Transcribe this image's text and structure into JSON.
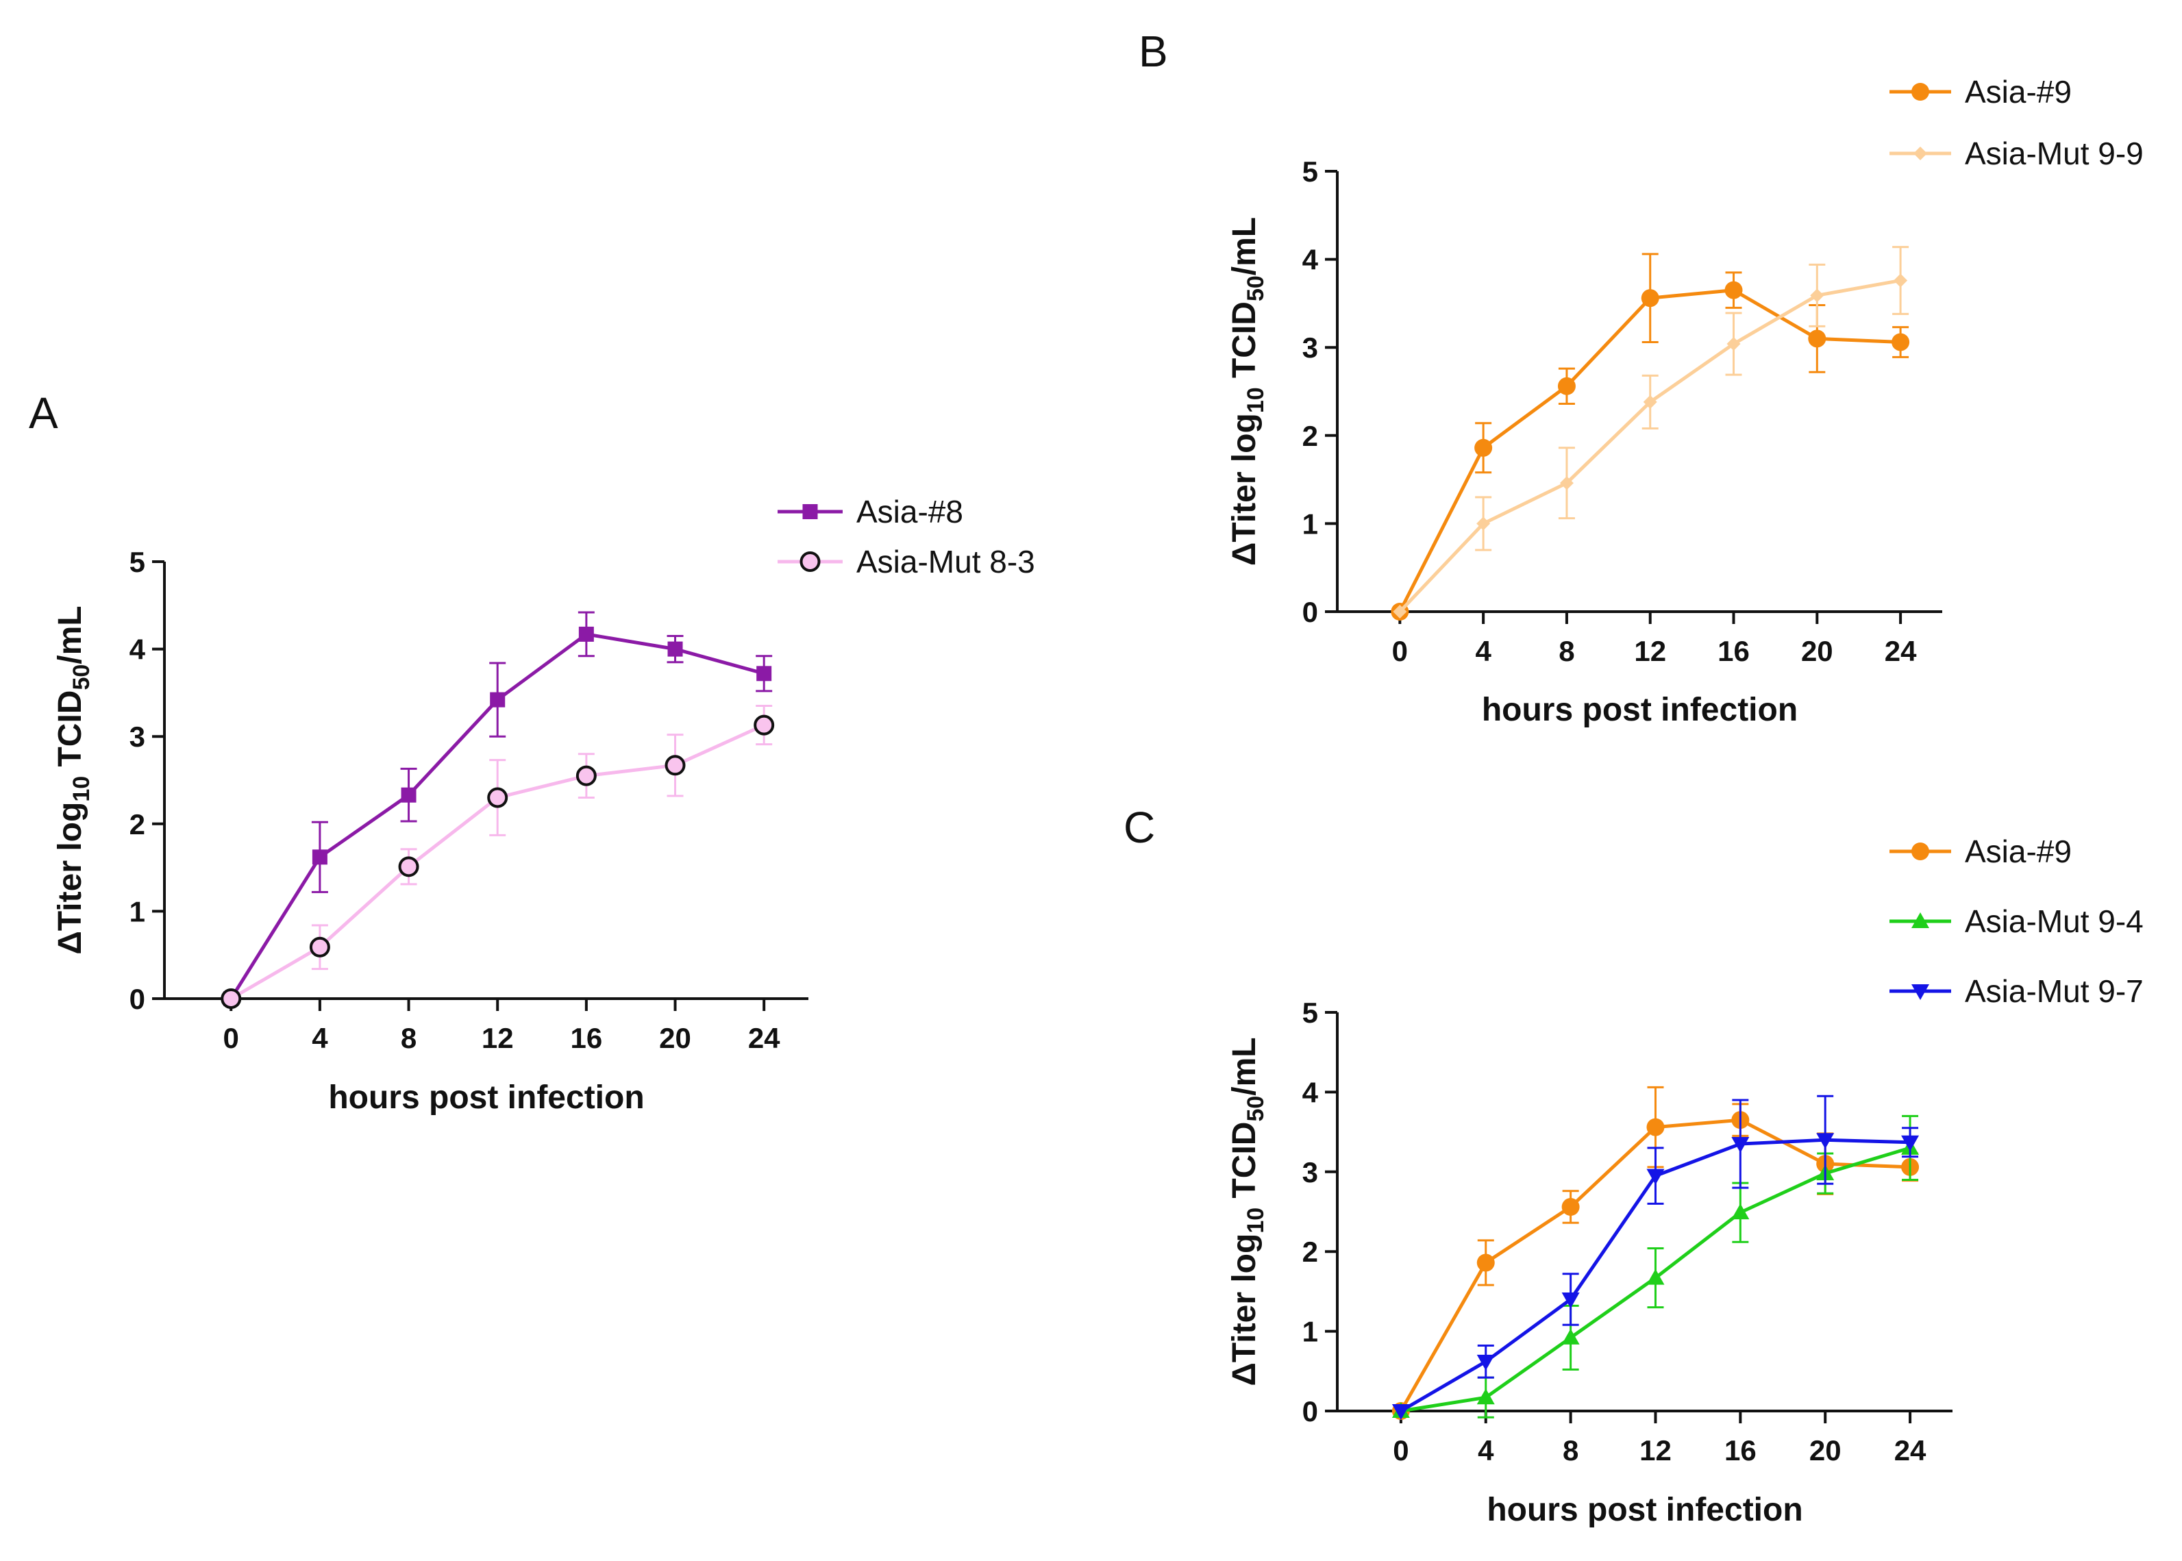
{
  "colors": {
    "purple": "#8b1aa6",
    "pink": "#f7b8ec",
    "pink_marker": "#f9c4ee",
    "orange": "#f58a0f",
    "light_orange": "#fccf99",
    "green": "#1fcf1a",
    "blue": "#1414e6",
    "axis": "#111111"
  },
  "chart_data": [
    {
      "panel": "A",
      "type": "line",
      "title": "",
      "xlabel": "hours post infection",
      "ylabel_main": "ΔTiter log",
      "ylabel_sub1": "10",
      "ylabel_mid": " TCID",
      "ylabel_sub2": "50",
      "ylabel_end": "/mL",
      "x": [
        0,
        4,
        8,
        12,
        16,
        20,
        24
      ],
      "x_ticks": [
        "0",
        "4",
        "8",
        "12",
        "16",
        "20",
        "24"
      ],
      "y_ticks": [
        "0",
        "1",
        "2",
        "3",
        "4",
        "5"
      ],
      "xlim": [
        -3,
        26
      ],
      "ylim": [
        0,
        5
      ],
      "grid": false,
      "legend_position": "top-right",
      "series": [
        {
          "name": "Asia-#8",
          "color": "purple",
          "marker": "square",
          "values": [
            0,
            1.62,
            2.33,
            3.42,
            4.17,
            4.0,
            3.72
          ],
          "errors": [
            0,
            0.4,
            0.3,
            0.42,
            0.25,
            0.15,
            0.2
          ]
        },
        {
          "name": "Asia-Mut 8-3",
          "color": "pink",
          "marker": "circle-open",
          "values": [
            0,
            0.59,
            1.51,
            2.3,
            2.55,
            2.67,
            3.13
          ],
          "errors": [
            0,
            0.25,
            0.2,
            0.43,
            0.25,
            0.35,
            0.22
          ]
        }
      ]
    },
    {
      "panel": "B",
      "type": "line",
      "title": "",
      "xlabel": "hours post infection",
      "ylabel_main": "ΔTiter log",
      "ylabel_sub1": "10",
      "ylabel_mid": " TCID",
      "ylabel_sub2": "50",
      "ylabel_end": "/mL",
      "x": [
        0,
        4,
        8,
        12,
        16,
        20,
        24
      ],
      "x_ticks": [
        "0",
        "4",
        "8",
        "12",
        "16",
        "20",
        "24"
      ],
      "y_ticks": [
        "0",
        "1",
        "2",
        "3",
        "4",
        "5"
      ],
      "xlim": [
        -3,
        26
      ],
      "ylim": [
        0,
        5
      ],
      "grid": false,
      "legend_position": "top-right",
      "series": [
        {
          "name": "Asia-#9",
          "color": "orange",
          "marker": "circle",
          "values": [
            0,
            1.86,
            2.56,
            3.56,
            3.65,
            3.1,
            3.06
          ],
          "errors": [
            0,
            0.28,
            0.2,
            0.5,
            0.2,
            0.38,
            0.17
          ]
        },
        {
          "name": "Asia-Mut 9-9",
          "color": "light_orange",
          "marker": "diamond",
          "values": [
            0,
            1.0,
            1.46,
            2.38,
            3.04,
            3.59,
            3.76
          ],
          "errors": [
            0,
            0.3,
            0.4,
            0.3,
            0.35,
            0.35,
            0.38
          ]
        }
      ]
    },
    {
      "panel": "C",
      "type": "line",
      "title": "",
      "xlabel": "hours post infection",
      "ylabel_main": "ΔTiter log",
      "ylabel_sub1": "10",
      "ylabel_mid": " TCID",
      "ylabel_sub2": "50",
      "ylabel_end": "/mL",
      "x": [
        0,
        4,
        8,
        12,
        16,
        20,
        24
      ],
      "x_ticks": [
        "0",
        "4",
        "8",
        "12",
        "16",
        "20",
        "24"
      ],
      "y_ticks": [
        "0",
        "1",
        "2",
        "3",
        "4",
        "5"
      ],
      "xlim": [
        -3,
        26
      ],
      "ylim": [
        0,
        5
      ],
      "grid": false,
      "legend_position": "top-right",
      "series": [
        {
          "name": "Asia-#9",
          "color": "orange",
          "marker": "circle",
          "values": [
            0,
            1.86,
            2.56,
            3.56,
            3.65,
            3.1,
            3.06
          ],
          "errors": [
            0,
            0.28,
            0.2,
            0.5,
            0.2,
            0.38,
            0.17
          ]
        },
        {
          "name": "Asia-Mut 9-4",
          "color": "green",
          "marker": "triangle-up",
          "values": [
            0,
            0.17,
            0.92,
            1.67,
            2.49,
            2.98,
            3.3
          ],
          "errors": [
            0,
            0.25,
            0.4,
            0.37,
            0.37,
            0.25,
            0.4
          ]
        },
        {
          "name": "Asia-Mut 9-7",
          "color": "blue",
          "marker": "triangle-down",
          "values": [
            0,
            0.62,
            1.4,
            2.95,
            3.35,
            3.4,
            3.37
          ],
          "errors": [
            0,
            0.2,
            0.32,
            0.35,
            0.55,
            0.55,
            0.18
          ]
        }
      ]
    }
  ]
}
